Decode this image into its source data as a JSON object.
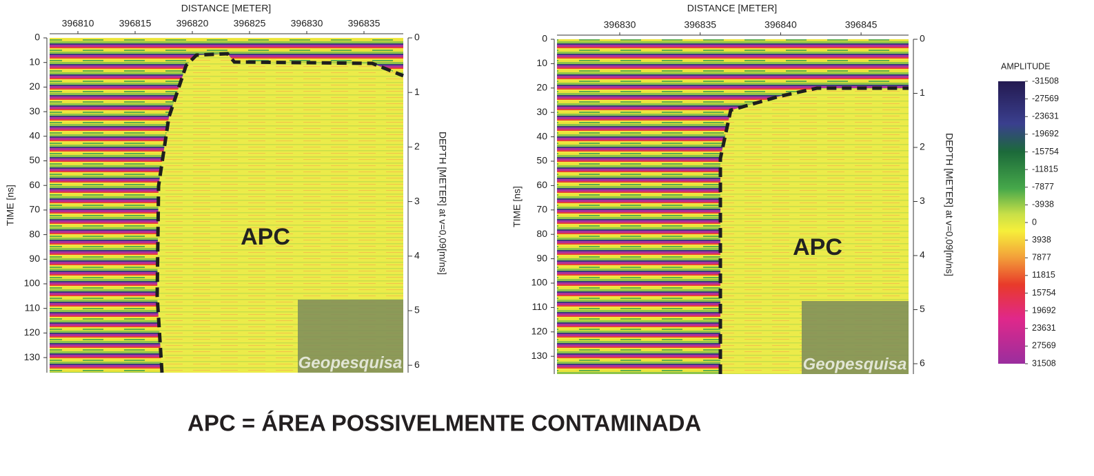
{
  "panels": [
    {
      "x_label": "DISTANCE [METER]",
      "x_ticks": [
        396810,
        396815,
        396820,
        396825,
        396830,
        396835
      ],
      "y_label": "TIME [ns]",
      "y_ticks": [
        0,
        10,
        20,
        30,
        40,
        50,
        60,
        70,
        80,
        90,
        100,
        110,
        120,
        130
      ],
      "y2_label": "DEPTH [METER] at v=0,09[m/ns]",
      "y2_ticks": [
        0,
        1,
        2,
        3,
        4,
        5,
        6
      ],
      "annotation": "APC",
      "watermark": "Geopesquisa"
    },
    {
      "x_label": "DISTANCE [METER]",
      "x_ticks": [
        396830,
        396835,
        396840,
        396845
      ],
      "y_label": "TIME [ns]",
      "y_ticks": [
        0,
        10,
        20,
        30,
        40,
        50,
        60,
        70,
        80,
        90,
        100,
        110,
        120,
        130
      ],
      "y2_label": "DEPTH [METER] at v=0,09[m/ns]",
      "y2_ticks": [
        0,
        1,
        2,
        3,
        4,
        5,
        6
      ],
      "annotation": "APC",
      "watermark": "Geopesquisa"
    }
  ],
  "colorbar": {
    "title": "AMPLITUDE",
    "ticks": [
      -31508,
      -27569,
      -23631,
      -19692,
      -15754,
      -11815,
      -7877,
      -3938,
      0,
      3938,
      7877,
      11815,
      15754,
      19692,
      23631,
      27569,
      31508
    ]
  },
  "caption": "APC = ÁREA POSSIVELMENTE CONTAMINADA"
}
